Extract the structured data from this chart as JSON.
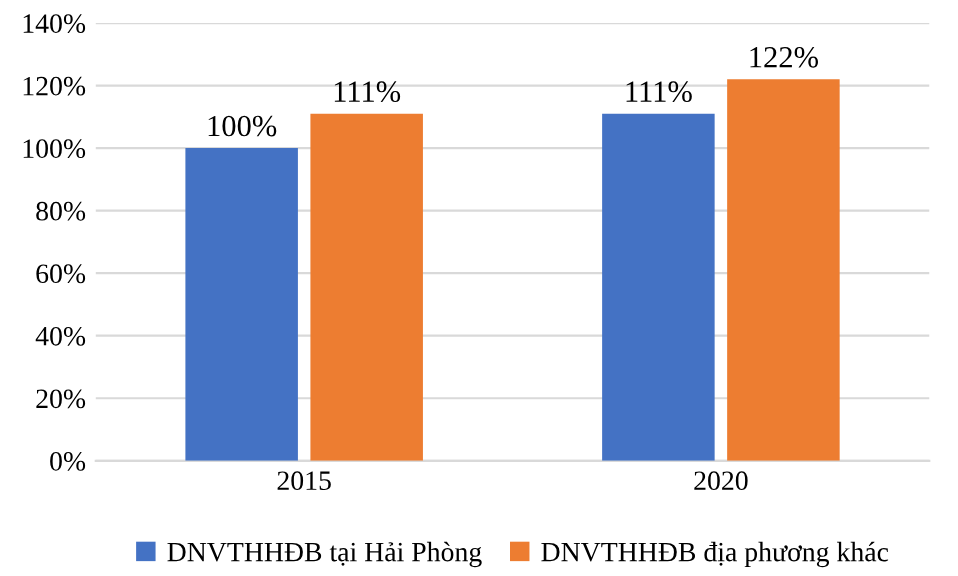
{
  "chart_data": {
    "type": "bar",
    "categories": [
      "2015",
      "2020"
    ],
    "series": [
      {
        "name": "DNVTHHĐB tại Hải Phòng",
        "color": "#4472c4",
        "values": [
          100,
          111
        ],
        "value_labels": [
          "100%",
          "111%"
        ]
      },
      {
        "name": "DNVTHHĐB địa phương khác",
        "color": "#ed7d31",
        "values": [
          111,
          122
        ],
        "value_labels": [
          "111%",
          "122%"
        ]
      }
    ],
    "ylim": [
      0,
      140
    ],
    "yticks": [
      {
        "value": 0,
        "label": "0%"
      },
      {
        "value": 20,
        "label": "20%"
      },
      {
        "value": 40,
        "label": "40%"
      },
      {
        "value": 60,
        "label": "60%"
      },
      {
        "value": 80,
        "label": "80%"
      },
      {
        "value": 100,
        "label": "100%"
      },
      {
        "value": 120,
        "label": "120%"
      },
      {
        "value": 140,
        "label": "140%"
      }
    ],
    "grid": "y",
    "legend": "bottom"
  }
}
